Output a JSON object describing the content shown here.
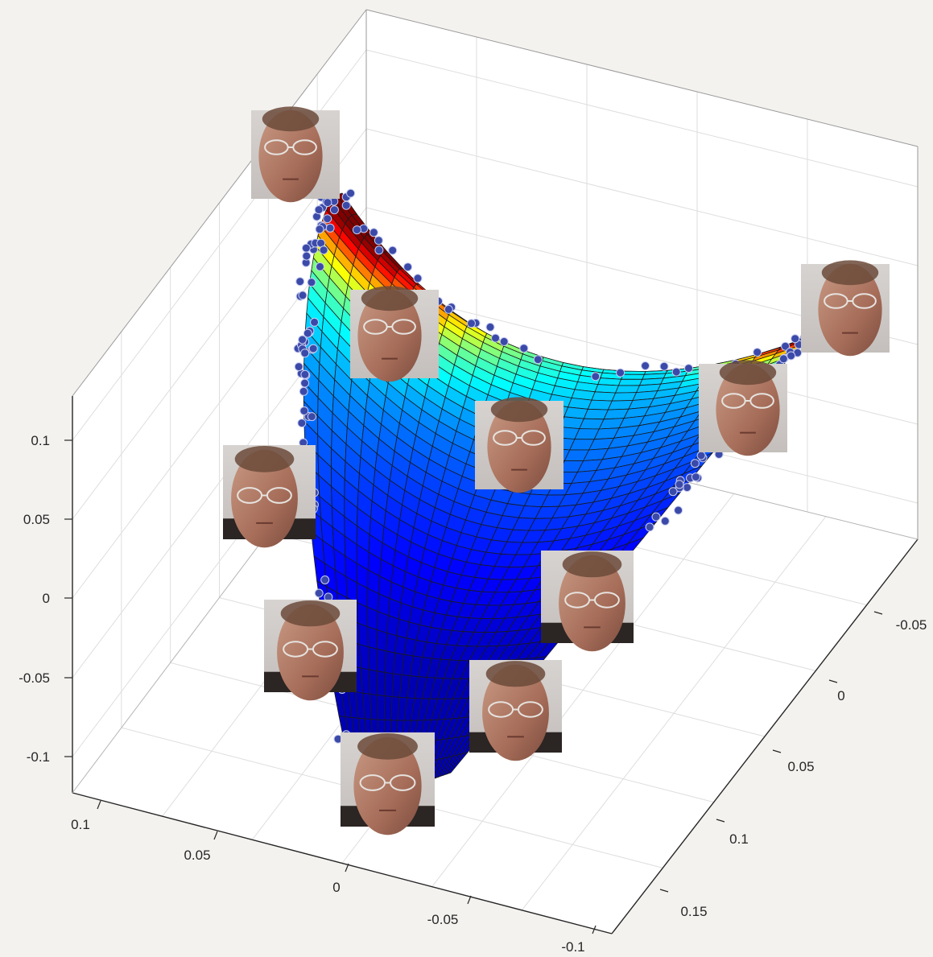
{
  "chart_data": {
    "type": "surface",
    "title": "",
    "xlabel": "",
    "ylabel": "",
    "zlabel": "",
    "grid": true,
    "colormap": "jet",
    "colors": {
      "background": "#f4f2ef",
      "axes_face": "#ffffff",
      "grid": "#dedede",
      "axis_line": "#262626",
      "surface_edge": "#1a1a1a",
      "marker": "#3b4aa8",
      "marker_edge": "#c9cdf0"
    },
    "axes": {
      "x": {
        "lim": [
          -0.1,
          0.12
        ],
        "ticks": [
          0.1,
          0.05,
          0,
          -0.05,
          -0.1
        ],
        "tick_labels": [
          "0.1",
          "0.05",
          "0",
          "-0.05",
          "-0.1"
        ]
      },
      "y": {
        "lim": [
          -0.08,
          0.17
        ],
        "ticks": [
          -0.05,
          0,
          0.05,
          0.1,
          0.15
        ],
        "tick_labels": [
          "-0.05",
          "0",
          "0.05",
          "0.1",
          "0.15"
        ]
      },
      "z": {
        "lim": [
          -0.12,
          0.12
        ],
        "ticks": [
          0.1,
          0.05,
          0,
          -0.05,
          -0.1
        ],
        "tick_labels": [
          "0.1",
          "0.05",
          "0",
          "-0.05",
          "-0.1"
        ]
      }
    },
    "surface_description": "Saddle-shaped 3D surface (jet colormap, red high to blue low) with scattered blue sample points; face thumbnails placed along the manifold.",
    "face_thumbnails": [
      {
        "pose": "profile-left"
      },
      {
        "pose": "slight-left"
      },
      {
        "pose": "frontal"
      },
      {
        "pose": "down-left"
      },
      {
        "pose": "profile-right"
      },
      {
        "pose": "slight-right"
      },
      {
        "pose": "down-right"
      },
      {
        "pose": "down"
      },
      {
        "pose": "down-slight"
      },
      {
        "pose": "down-center"
      }
    ]
  }
}
